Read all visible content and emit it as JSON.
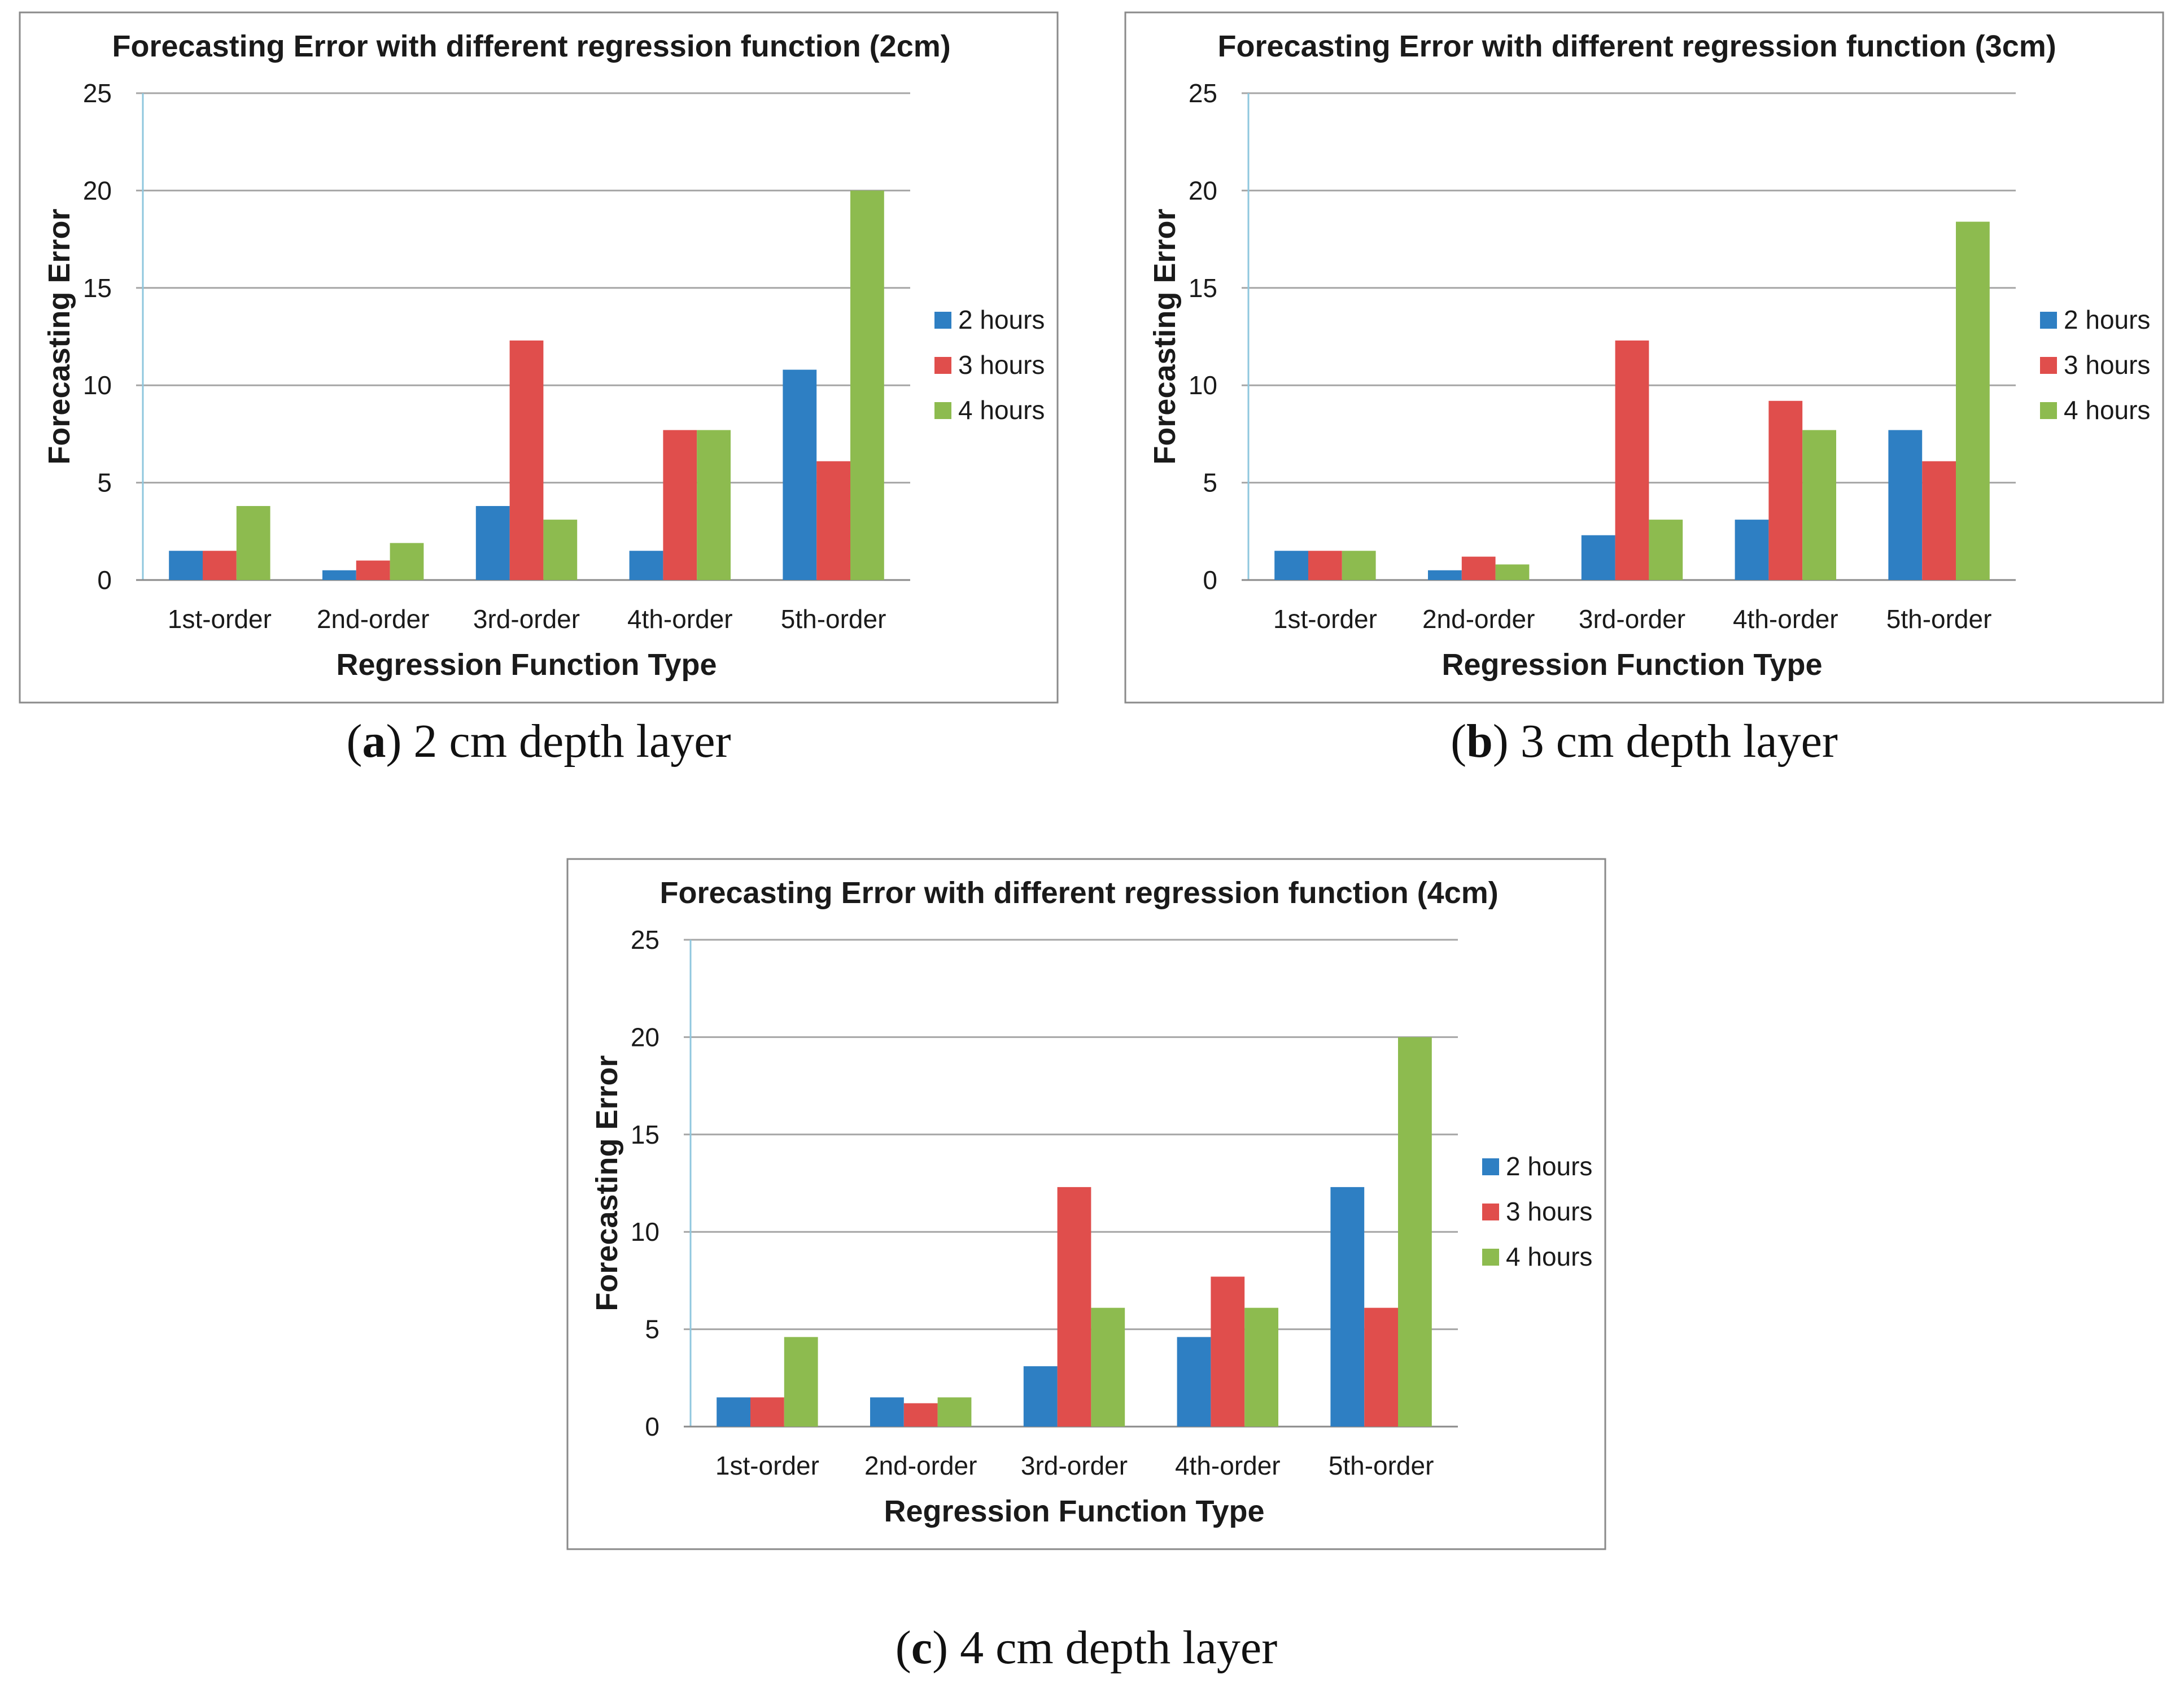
{
  "chart_data": [
    {
      "type": "bar",
      "title": "Forecasting Error with different regression function (2cm)",
      "xlabel": "Regression Function Type",
      "ylabel": "Forecasting Error",
      "ylim": [
        0,
        25
      ],
      "yticks": [
        "0",
        "5",
        "10",
        "15",
        "20",
        "25"
      ],
      "grid": true,
      "legend_position": "right",
      "categories": [
        "1st-order",
        "2nd-order",
        "3rd-order",
        "4th-order",
        "5th-order"
      ],
      "series": [
        {
          "name": "2 hours",
          "values": [
            1.5,
            0.5,
            3.8,
            1.5,
            10.8
          ]
        },
        {
          "name": "3 hours",
          "values": [
            1.5,
            1.0,
            12.3,
            7.7,
            6.1
          ]
        },
        {
          "name": "4 hours",
          "values": [
            3.8,
            1.9,
            3.1,
            7.7,
            20.0
          ]
        }
      ],
      "caption": {
        "letter": "a",
        "text": " 2 cm depth layer"
      }
    },
    {
      "type": "bar",
      "title": "Forecasting Error with different regression function (3cm)",
      "xlabel": "Regression Function Type",
      "ylabel": "Forecasting Error",
      "ylim": [
        0,
        25
      ],
      "yticks": [
        "0",
        "5",
        "10",
        "15",
        "20",
        "25"
      ],
      "grid": true,
      "legend_position": "right",
      "categories": [
        "1st-order",
        "2nd-order",
        "3rd-order",
        "4th-order",
        "5th-order"
      ],
      "series": [
        {
          "name": "2 hours",
          "values": [
            1.5,
            0.5,
            2.3,
            3.1,
            7.7
          ]
        },
        {
          "name": "3 hours",
          "values": [
            1.5,
            1.2,
            12.3,
            9.2,
            6.1
          ]
        },
        {
          "name": "4 hours",
          "values": [
            1.5,
            0.8,
            3.1,
            7.7,
            18.4
          ]
        }
      ],
      "caption": {
        "letter": "b",
        "text": " 3 cm depth layer"
      }
    },
    {
      "type": "bar",
      "title": "Forecasting Error with different regression function (4cm)",
      "xlabel": "Regression Function Type",
      "ylabel": "Forecasting Error",
      "ylim": [
        0,
        25
      ],
      "yticks": [
        "0",
        "5",
        "10",
        "15",
        "20",
        "25"
      ],
      "grid": true,
      "legend_position": "right",
      "categories": [
        "1st-order",
        "2nd-order",
        "3rd-order",
        "4th-order",
        "5th-order"
      ],
      "series": [
        {
          "name": "2 hours",
          "values": [
            1.5,
            1.5,
            3.1,
            4.6,
            12.3
          ]
        },
        {
          "name": "3 hours",
          "values": [
            1.5,
            1.2,
            12.3,
            7.7,
            6.1
          ]
        },
        {
          "name": "4 hours",
          "values": [
            4.6,
            1.5,
            6.1,
            6.1,
            20.0
          ]
        }
      ],
      "caption": {
        "letter": "c",
        "text": " 4 cm depth layer"
      }
    }
  ],
  "colors": {
    "2 hours": "#2e7fc3",
    "3 hours": "#e04e4c",
    "4 hours": "#8dbb4f"
  }
}
